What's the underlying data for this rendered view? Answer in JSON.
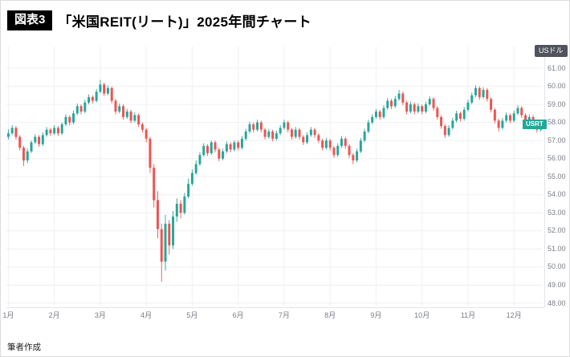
{
  "header": {
    "figure_label": "図表3",
    "title": "「米国REIT(リート)」2025年間チャート"
  },
  "chart_data": {
    "type": "candlestick",
    "title": "「米国REIT(リート)」2025年間チャート",
    "figure_label": "図表3",
    "unit_label": "USドル",
    "ticker_label": "USRT",
    "source_note": "筆者作成",
    "ylim": [
      48,
      61
    ],
    "y_tick_step": 1,
    "y_tick_labels": [
      "61.00",
      "60.00",
      "59.00",
      "58.00",
      "57.00",
      "56.00",
      "55.00",
      "54.00",
      "53.00",
      "52.00",
      "51.00",
      "50.00",
      "49.00",
      "48.00"
    ],
    "x_tick_labels": [
      "1月",
      "2月",
      "3月",
      "4月",
      "5月",
      "6月",
      "7月",
      "8月",
      "9月",
      "10月",
      "11月",
      "12月"
    ],
    "month_start_indices": [
      0,
      12,
      24,
      36,
      48,
      60,
      72,
      84,
      96,
      108,
      120,
      132
    ],
    "up_color": "#26a69a",
    "down_color": "#ef5350",
    "grid_color": "#eef0f3",
    "candles": [
      [
        57.2,
        57.62,
        57.05,
        57.4
      ],
      [
        57.4,
        57.85,
        57.3,
        57.7
      ],
      [
        57.7,
        57.8,
        57.05,
        57.2
      ],
      [
        57.2,
        57.3,
        56.45,
        56.6
      ],
      [
        56.6,
        56.7,
        55.6,
        55.9
      ],
      [
        55.9,
        56.55,
        55.75,
        56.4
      ],
      [
        56.4,
        57.0,
        56.3,
        56.9
      ],
      [
        56.9,
        57.35,
        56.8,
        57.2
      ],
      [
        57.2,
        57.3,
        56.65,
        56.8
      ],
      [
        56.8,
        57.45,
        56.7,
        57.3
      ],
      [
        57.3,
        57.75,
        57.2,
        57.6
      ],
      [
        57.6,
        57.7,
        57.25,
        57.4
      ],
      [
        57.4,
        57.85,
        57.3,
        57.7
      ],
      [
        57.7,
        57.8,
        57.25,
        57.4
      ],
      [
        57.4,
        58.0,
        57.3,
        57.9
      ],
      [
        57.9,
        58.45,
        57.8,
        58.3
      ],
      [
        58.3,
        58.4,
        57.85,
        58.0
      ],
      [
        58.0,
        58.65,
        57.9,
        58.5
      ],
      [
        58.5,
        59.05,
        58.4,
        58.9
      ],
      [
        58.9,
        59.0,
        58.45,
        58.6
      ],
      [
        58.6,
        59.25,
        58.5,
        59.1
      ],
      [
        59.1,
        59.55,
        59.0,
        59.4
      ],
      [
        59.4,
        59.5,
        59.05,
        59.2
      ],
      [
        59.2,
        59.85,
        59.1,
        59.7
      ],
      [
        59.7,
        60.35,
        59.6,
        60.1
      ],
      [
        60.1,
        60.2,
        59.45,
        59.6
      ],
      [
        59.6,
        60.05,
        59.5,
        59.9
      ],
      [
        59.9,
        60.0,
        59.05,
        59.2
      ],
      [
        59.2,
        59.3,
        58.45,
        58.6
      ],
      [
        58.6,
        59.05,
        58.5,
        58.9
      ],
      [
        58.9,
        59.0,
        58.15,
        58.3
      ],
      [
        58.3,
        58.75,
        58.2,
        58.6
      ],
      [
        58.6,
        58.7,
        57.95,
        58.1
      ],
      [
        58.1,
        58.55,
        58.0,
        58.4
      ],
      [
        58.4,
        58.5,
        57.75,
        57.9
      ],
      [
        57.9,
        58.0,
        57.45,
        57.6
      ],
      [
        57.6,
        57.7,
        56.9,
        57.1
      ],
      [
        57.1,
        57.2,
        55.2,
        55.5
      ],
      [
        55.5,
        55.7,
        53.3,
        53.7
      ],
      [
        53.7,
        54.2,
        51.6,
        52.1
      ],
      [
        52.1,
        52.4,
        49.2,
        50.3
      ],
      [
        50.3,
        52.9,
        49.8,
        52.4
      ],
      [
        52.4,
        52.6,
        50.7,
        51.2
      ],
      [
        51.2,
        53.1,
        51.0,
        52.8
      ],
      [
        52.8,
        53.8,
        52.5,
        53.5
      ],
      [
        53.5,
        53.7,
        52.7,
        53.0
      ],
      [
        53.0,
        54.1,
        52.9,
        53.9
      ],
      [
        53.9,
        54.9,
        53.8,
        54.6
      ],
      [
        54.6,
        55.4,
        54.5,
        55.2
      ],
      [
        55.2,
        55.9,
        55.1,
        55.7
      ],
      [
        55.7,
        56.35,
        55.6,
        56.2
      ],
      [
        56.2,
        56.85,
        56.1,
        56.7
      ],
      [
        56.7,
        56.8,
        56.15,
        56.3
      ],
      [
        56.3,
        57.0,
        56.2,
        56.9
      ],
      [
        56.9,
        57.0,
        56.35,
        56.5
      ],
      [
        56.5,
        56.6,
        55.85,
        56.0
      ],
      [
        56.0,
        56.55,
        55.9,
        56.4
      ],
      [
        56.4,
        56.95,
        56.3,
        56.8
      ],
      [
        56.8,
        56.9,
        56.35,
        56.5
      ],
      [
        56.5,
        57.0,
        56.4,
        56.9
      ],
      [
        56.9,
        57.0,
        56.45,
        56.6
      ],
      [
        56.6,
        57.25,
        56.5,
        57.1
      ],
      [
        57.1,
        57.65,
        57.0,
        57.5
      ],
      [
        57.5,
        58.05,
        57.4,
        57.9
      ],
      [
        57.9,
        58.0,
        57.45,
        57.6
      ],
      [
        57.6,
        58.15,
        57.5,
        58.0
      ],
      [
        58.0,
        58.1,
        57.45,
        57.6
      ],
      [
        57.6,
        57.7,
        57.05,
        57.2
      ],
      [
        57.2,
        57.65,
        57.1,
        57.5
      ],
      [
        57.5,
        57.6,
        56.95,
        57.1
      ],
      [
        57.1,
        57.55,
        57.0,
        57.4
      ],
      [
        57.4,
        57.85,
        57.3,
        57.7
      ],
      [
        57.7,
        58.15,
        57.6,
        58.0
      ],
      [
        58.0,
        58.1,
        57.45,
        57.6
      ],
      [
        57.6,
        57.7,
        57.05,
        57.2
      ],
      [
        57.2,
        57.75,
        57.1,
        57.6
      ],
      [
        57.6,
        57.7,
        57.05,
        57.2
      ],
      [
        57.2,
        57.3,
        56.75,
        56.9
      ],
      [
        56.9,
        57.45,
        56.8,
        57.3
      ],
      [
        57.3,
        57.75,
        57.2,
        57.6
      ],
      [
        57.6,
        57.7,
        57.15,
        57.3
      ],
      [
        57.3,
        57.4,
        56.85,
        57.0
      ],
      [
        57.0,
        57.1,
        56.45,
        56.6
      ],
      [
        56.6,
        57.15,
        56.5,
        57.0
      ],
      [
        57.0,
        57.1,
        56.45,
        56.6
      ],
      [
        56.6,
        56.7,
        56.05,
        56.2
      ],
      [
        56.2,
        56.85,
        56.1,
        56.7
      ],
      [
        56.7,
        57.25,
        56.6,
        57.1
      ],
      [
        57.1,
        57.2,
        56.55,
        56.7
      ],
      [
        56.7,
        56.8,
        56.05,
        56.2
      ],
      [
        56.2,
        56.3,
        55.7,
        55.9
      ],
      [
        55.9,
        56.55,
        55.8,
        56.4
      ],
      [
        56.4,
        57.15,
        56.3,
        57.0
      ],
      [
        57.0,
        57.65,
        56.9,
        57.5
      ],
      [
        57.5,
        58.15,
        57.4,
        58.0
      ],
      [
        58.0,
        58.45,
        57.9,
        58.3
      ],
      [
        58.3,
        58.75,
        58.2,
        58.6
      ],
      [
        58.6,
        58.7,
        58.15,
        58.3
      ],
      [
        58.3,
        58.95,
        58.2,
        58.8
      ],
      [
        58.8,
        59.35,
        58.7,
        59.2
      ],
      [
        59.2,
        59.3,
        58.75,
        58.9
      ],
      [
        58.9,
        59.45,
        58.8,
        59.3
      ],
      [
        59.3,
        59.8,
        59.2,
        59.6
      ],
      [
        59.6,
        59.7,
        58.95,
        59.1
      ],
      [
        59.1,
        59.2,
        58.45,
        58.6
      ],
      [
        58.6,
        59.15,
        58.5,
        59.0
      ],
      [
        59.0,
        59.1,
        58.45,
        58.6
      ],
      [
        58.6,
        59.05,
        58.5,
        58.9
      ],
      [
        58.9,
        59.0,
        58.45,
        58.6
      ],
      [
        58.6,
        59.15,
        58.5,
        59.0
      ],
      [
        59.0,
        59.45,
        58.9,
        59.3
      ],
      [
        59.3,
        59.4,
        58.65,
        58.8
      ],
      [
        58.8,
        58.9,
        58.15,
        58.3
      ],
      [
        58.3,
        58.4,
        57.65,
        57.8
      ],
      [
        57.8,
        57.9,
        57.15,
        57.3
      ],
      [
        57.3,
        57.85,
        57.2,
        57.7
      ],
      [
        57.7,
        58.25,
        57.6,
        58.1
      ],
      [
        58.1,
        58.65,
        58.0,
        58.5
      ],
      [
        58.5,
        58.6,
        58.05,
        58.2
      ],
      [
        58.2,
        58.85,
        58.1,
        58.7
      ],
      [
        58.7,
        59.25,
        58.6,
        59.1
      ],
      [
        59.1,
        59.65,
        59.0,
        59.5
      ],
      [
        59.5,
        60.05,
        59.4,
        59.9
      ],
      [
        59.9,
        60.0,
        59.25,
        59.4
      ],
      [
        59.4,
        59.95,
        59.3,
        59.8
      ],
      [
        59.8,
        59.9,
        59.15,
        59.3
      ],
      [
        59.3,
        59.4,
        58.55,
        58.7
      ],
      [
        58.7,
        58.8,
        57.95,
        58.1
      ],
      [
        58.1,
        58.2,
        57.5,
        57.7
      ],
      [
        57.7,
        58.25,
        57.6,
        58.1
      ],
      [
        58.1,
        58.55,
        58.0,
        58.4
      ],
      [
        58.4,
        58.5,
        57.95,
        58.1
      ],
      [
        58.1,
        58.65,
        58.0,
        58.5
      ],
      [
        58.5,
        58.95,
        58.4,
        58.8
      ],
      [
        58.8,
        58.9,
        58.25,
        58.4
      ],
      [
        58.4,
        58.5,
        57.85,
        58.0
      ],
      [
        58.0,
        58.45,
        57.9,
        58.3
      ],
      [
        58.3,
        58.4,
        57.75,
        57.9
      ],
      [
        57.9,
        58.0,
        57.45,
        57.6
      ],
      [
        57.6,
        58.05,
        57.5,
        57.9
      ]
    ]
  }
}
